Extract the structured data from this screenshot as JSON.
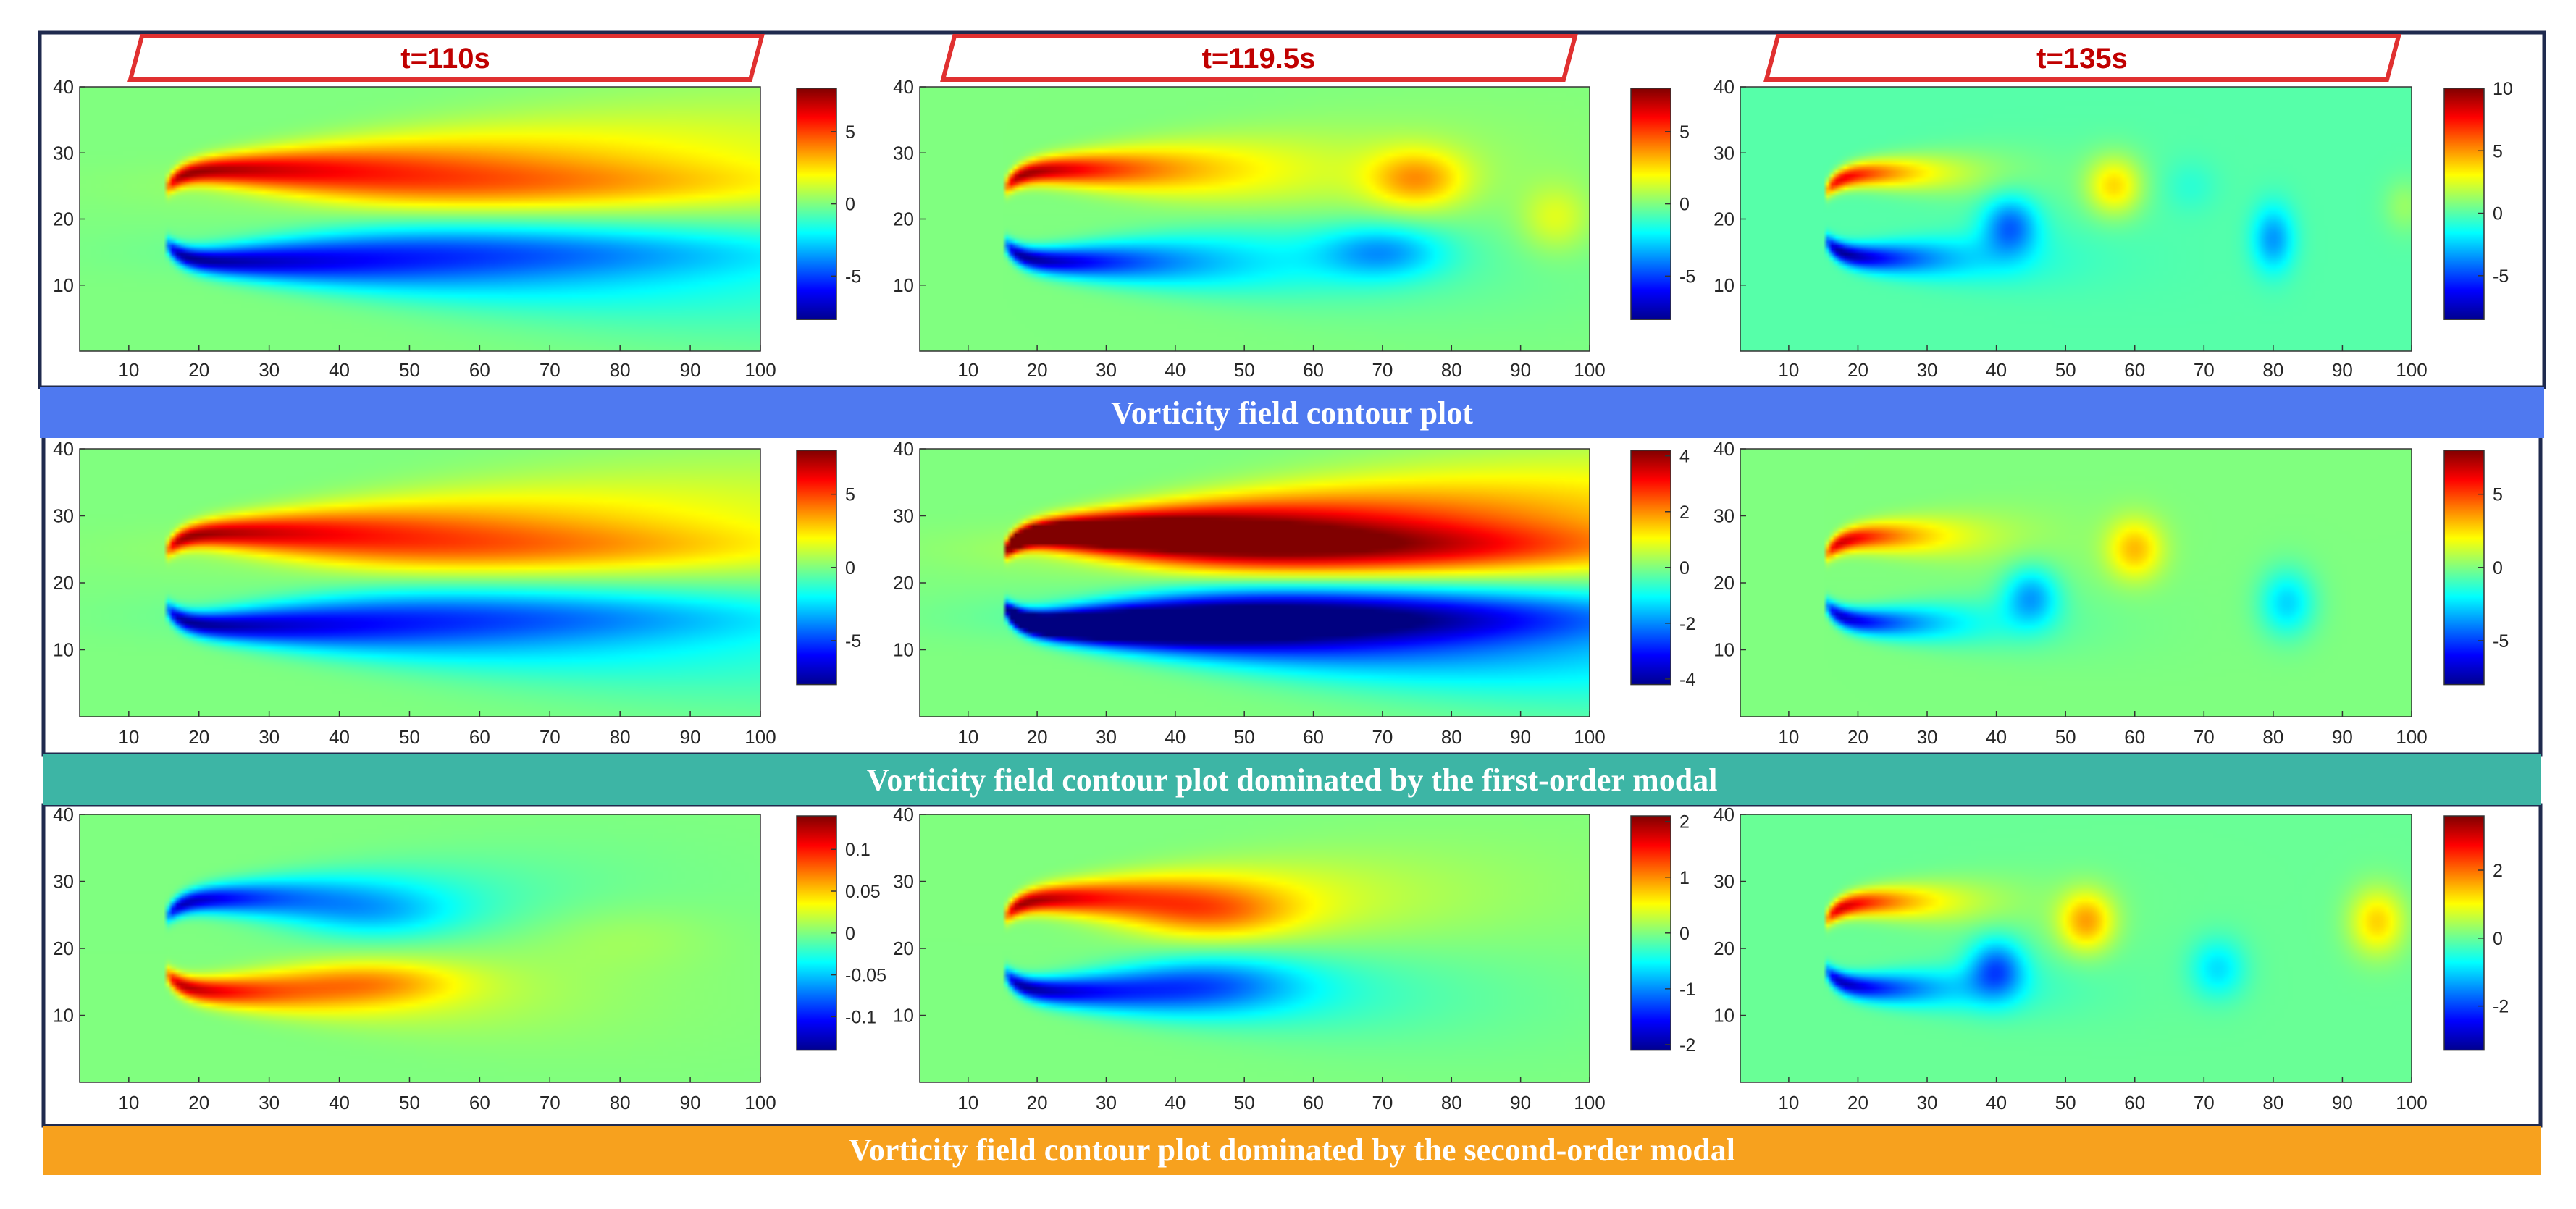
{
  "time_labels": [
    "t=110s",
    "t=119.5s",
    "t=135s"
  ],
  "row_titles": [
    "Vorticity field contour plot",
    "Vorticity field contour plot dominated by the first-order modal",
    "Vorticity field contour plot dominated by the second-order modal"
  ],
  "colors": {
    "row1_bar": "#4f79f0",
    "row2_bar": "#3db5a5",
    "row3_bar": "#f7a11e",
    "frame": "#1f2a4e",
    "time_label_border": "#e03030",
    "field_background": "#7fd96a"
  },
  "chart_data": {
    "type": "heatmap",
    "colormap": "jet",
    "x_ticks": [
      10,
      20,
      30,
      40,
      50,
      60,
      70,
      80,
      90,
      100
    ],
    "y_ticks": [
      10,
      20,
      30,
      40
    ],
    "xlim": [
      3,
      100
    ],
    "ylim": [
      0,
      40
    ],
    "panels": [
      {
        "row": 0,
        "col": 0,
        "time": "t=110s",
        "colorbar_ticks": [
          -5,
          0,
          5
        ],
        "colorbar_labels": [
          "-5",
          "0",
          "5"
        ],
        "clim": [
          -8,
          8
        ],
        "pattern": "steady"
      },
      {
        "row": 0,
        "col": 1,
        "time": "t=119.5s",
        "colorbar_ticks": [
          -5,
          0,
          5
        ],
        "colorbar_labels": [
          "-5",
          "0",
          "5"
        ],
        "clim": [
          -8,
          8
        ],
        "pattern": "onset"
      },
      {
        "row": 0,
        "col": 2,
        "time": "t=135s",
        "colorbar_ticks": [
          -5,
          0,
          5,
          10
        ],
        "colorbar_labels": [
          "-5",
          "0",
          "5",
          "10"
        ],
        "clim": [
          -8.5,
          10
        ],
        "pattern": "shedding"
      },
      {
        "row": 1,
        "col": 0,
        "time": "t=110s",
        "colorbar_ticks": [
          -5,
          0,
          5
        ],
        "colorbar_labels": [
          "-5",
          "0",
          "5"
        ],
        "clim": [
          -8,
          8
        ],
        "pattern": "steady"
      },
      {
        "row": 1,
        "col": 1,
        "time": "t=119.5s",
        "colorbar_ticks": [
          -4,
          -2,
          0,
          2,
          4
        ],
        "colorbar_labels": [
          "-4",
          "-2",
          "0",
          "2",
          "4"
        ],
        "clim": [
          -4.2,
          4.2
        ],
        "pattern": "steady"
      },
      {
        "row": 1,
        "col": 2,
        "time": "t=135s",
        "colorbar_ticks": [
          -5,
          0,
          5
        ],
        "colorbar_labels": [
          "-5",
          "0",
          "5"
        ],
        "clim": [
          -8,
          8
        ],
        "pattern": "mode1_shedding"
      },
      {
        "row": 2,
        "col": 0,
        "time": "t=110s",
        "colorbar_ticks": [
          -0.1,
          -0.05,
          0,
          0.05,
          0.1
        ],
        "colorbar_labels": [
          "-0.1",
          "-0.05",
          "0",
          "0.05",
          "0.1"
        ],
        "clim": [
          -0.14,
          0.14
        ],
        "pattern": "inverted"
      },
      {
        "row": 2,
        "col": 1,
        "time": "t=119.5s",
        "colorbar_ticks": [
          -2,
          -1,
          0,
          1,
          2
        ],
        "colorbar_labels": [
          "-2",
          "-1",
          "0",
          "1",
          "2"
        ],
        "clim": [
          -2.1,
          2.1
        ],
        "pattern": "mode2_mid"
      },
      {
        "row": 2,
        "col": 2,
        "time": "t=135s",
        "colorbar_ticks": [
          -2,
          0,
          2
        ],
        "colorbar_labels": [
          "-2",
          "0",
          "2"
        ],
        "clim": [
          -3.3,
          3.6
        ],
        "pattern": "mode2_shedding"
      }
    ]
  }
}
